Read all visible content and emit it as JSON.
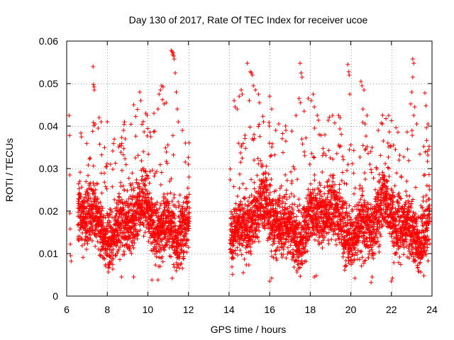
{
  "chart_data": {
    "type": "scatter",
    "title": "Day 130 of 2017, Rate Of TEC Index for receiver ucoe",
    "xlabel": "GPS time / hours",
    "ylabel": "ROTI / TECUs",
    "xlim": [
      6,
      24
    ],
    "ylim": [
      0,
      0.06
    ],
    "xticks": [
      6,
      8,
      10,
      12,
      14,
      16,
      18,
      20,
      22,
      24
    ],
    "xtick_labels": [
      "6",
      "8",
      "10",
      "12",
      "14",
      "16",
      "18",
      "20",
      "22",
      "24"
    ],
    "yticks": [
      0,
      0.01,
      0.02,
      0.03,
      0.04,
      0.05,
      0.06
    ],
    "ytick_labels": [
      "0",
      "0.01",
      "0.02",
      "0.03",
      "0.04",
      "0.05",
      "0.06"
    ],
    "grid": true,
    "marker": "+",
    "series": [
      {
        "name": "ROTI",
        "color": "#ff0000",
        "data_gaps_hours": [
          [
            6.3,
            6.55
          ],
          [
            12.05,
            14.05
          ]
        ],
        "points": [
          [
            6.12,
            0.0425
          ],
          [
            6.14,
            0.0378
          ],
          [
            6.15,
            0.0285
          ],
          [
            6.16,
            0.0195
          ],
          [
            6.17,
            0.0158
          ],
          [
            6.18,
            0.0122
          ],
          [
            6.2,
            0.0095
          ],
          [
            6.22,
            0.0082
          ],
          [
            7.3,
            0.054
          ],
          [
            7.32,
            0.0498
          ],
          [
            7.35,
            0.0492
          ],
          [
            7.36,
            0.0485
          ],
          [
            7.4,
            0.0405
          ],
          [
            7.6,
            0.042
          ],
          [
            7.7,
            0.041
          ],
          [
            7.55,
            0.0395
          ],
          [
            8.0,
            0.041
          ],
          [
            8.85,
            0.041
          ],
          [
            8.8,
            0.039
          ],
          [
            9.6,
            0.048
          ],
          [
            9.65,
            0.046
          ],
          [
            9.3,
            0.045
          ],
          [
            9.9,
            0.043
          ],
          [
            10.3,
            0.043
          ],
          [
            10.5,
            0.044
          ],
          [
            10.55,
            0.0475
          ],
          [
            10.62,
            0.0485
          ],
          [
            10.68,
            0.0495
          ],
          [
            10.75,
            0.0492
          ],
          [
            10.72,
            0.0462
          ],
          [
            10.8,
            0.0452
          ],
          [
            10.9,
            0.0455
          ],
          [
            11.15,
            0.0578
          ],
          [
            11.2,
            0.0575
          ],
          [
            11.22,
            0.0568
          ],
          [
            11.25,
            0.0572
          ],
          [
            11.28,
            0.0565
          ],
          [
            11.3,
            0.0558
          ],
          [
            11.35,
            0.0525
          ],
          [
            11.4,
            0.048
          ],
          [
            11.45,
            0.044
          ],
          [
            11.5,
            0.041
          ],
          [
            11.7,
            0.039
          ],
          [
            11.85,
            0.036
          ],
          [
            12.0,
            0.031
          ],
          [
            12.02,
            0.028
          ],
          [
            9.3,
            0.0045
          ],
          [
            10.2,
            0.0038
          ],
          [
            10.5,
            0.0038
          ],
          [
            11.2,
            0.0042
          ],
          [
            8.7,
            0.0045
          ],
          [
            14.25,
            0.046
          ],
          [
            14.3,
            0.0445
          ],
          [
            14.4,
            0.044
          ],
          [
            14.5,
            0.047
          ],
          [
            14.6,
            0.0485
          ],
          [
            14.65,
            0.0475
          ],
          [
            14.9,
            0.0548
          ],
          [
            15.05,
            0.0528
          ],
          [
            15.1,
            0.0525
          ],
          [
            15.15,
            0.052
          ],
          [
            15.2,
            0.0495
          ],
          [
            15.3,
            0.0485
          ],
          [
            15.0,
            0.046
          ],
          [
            15.45,
            0.0475
          ],
          [
            15.5,
            0.0455
          ],
          [
            15.7,
            0.041
          ],
          [
            16.0,
            0.047
          ],
          [
            16.1,
            0.044
          ],
          [
            16.45,
            0.0405
          ],
          [
            16.3,
            0.039
          ],
          [
            16.8,
            0.039
          ],
          [
            17.5,
            0.0548
          ],
          [
            17.55,
            0.0525
          ],
          [
            17.6,
            0.0515
          ],
          [
            17.45,
            0.0465
          ],
          [
            17.52,
            0.0455
          ],
          [
            17.7,
            0.0435
          ],
          [
            17.9,
            0.0465
          ],
          [
            18.05,
            0.046
          ],
          [
            18.15,
            0.0475
          ],
          [
            18.2,
            0.0445
          ],
          [
            18.35,
            0.0425
          ],
          [
            17.3,
            0.0425
          ],
          [
            19.1,
            0.0425
          ],
          [
            19.4,
            0.0425
          ],
          [
            19.85,
            0.0545
          ],
          [
            19.9,
            0.0528
          ],
          [
            19.92,
            0.052
          ],
          [
            19.95,
            0.0475
          ],
          [
            20.5,
            0.0505
          ],
          [
            20.55,
            0.0495
          ],
          [
            20.65,
            0.0485
          ],
          [
            20.6,
            0.044
          ],
          [
            20.8,
            0.0425
          ],
          [
            20.7,
            0.0405
          ],
          [
            21.35,
            0.039
          ],
          [
            21.6,
            0.0365
          ],
          [
            22.1,
            0.0355
          ],
          [
            22.2,
            0.0345
          ],
          [
            23.05,
            0.0558
          ],
          [
            23.1,
            0.0548
          ],
          [
            23.05,
            0.0515
          ],
          [
            23.0,
            0.048
          ],
          [
            22.95,
            0.0452
          ],
          [
            23.15,
            0.0445
          ],
          [
            23.1,
            0.0425
          ],
          [
            23.25,
            0.0405
          ],
          [
            23.65,
            0.0478
          ],
          [
            23.7,
            0.0448
          ],
          [
            23.8,
            0.0405
          ],
          [
            23.85,
            0.0345
          ],
          [
            16.0,
            0.0035
          ],
          [
            16.1,
            0.0042
          ],
          [
            18.2,
            0.0045
          ],
          [
            18.3,
            0.0048
          ],
          [
            20.2,
            0.0042
          ],
          [
            21.0,
            0.0032
          ],
          [
            21.05,
            0.0045
          ],
          [
            22.0,
            0.0035
          ],
          [
            22.05,
            0.0042
          ],
          [
            23.6,
            0.0048
          ],
          [
            14.7,
            0.0055
          ]
        ]
      }
    ]
  }
}
